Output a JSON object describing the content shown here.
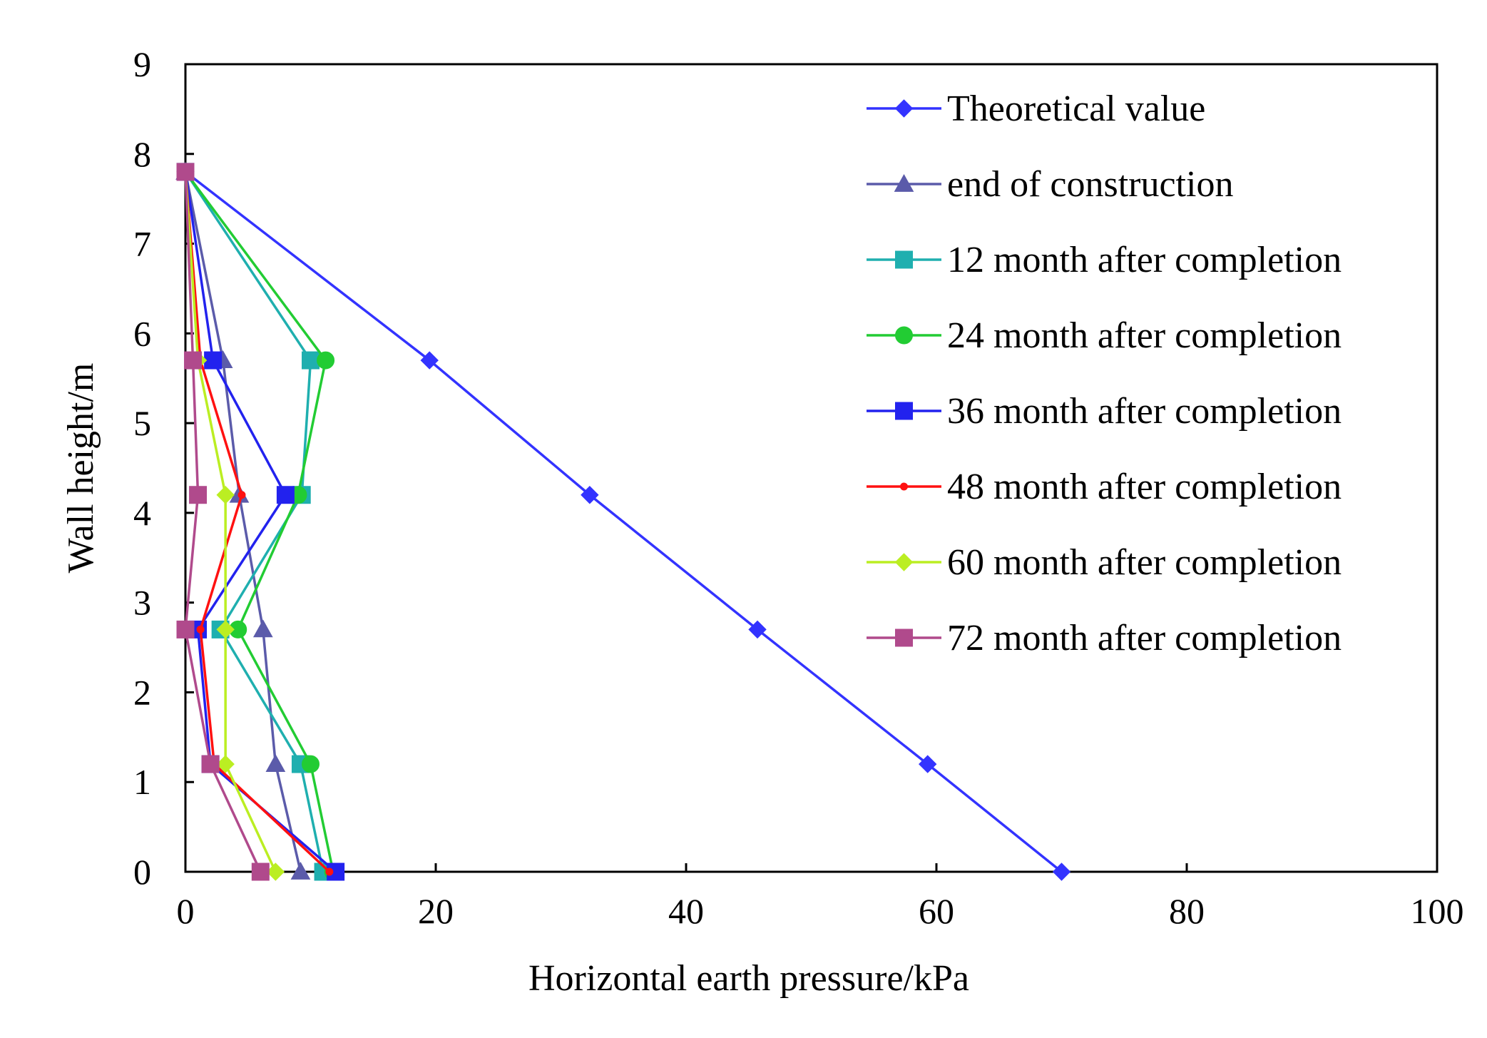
{
  "chart_data": {
    "type": "line",
    "title": "",
    "xlabel": "Horizontal  earth pressure/kPa",
    "ylabel": "Wall height/m",
    "xlim": [
      0,
      100
    ],
    "ylim": [
      0,
      9
    ],
    "xticks": [
      0,
      20,
      40,
      60,
      80,
      100
    ],
    "yticks": [
      0,
      1,
      2,
      3,
      4,
      5,
      6,
      7,
      8,
      9
    ],
    "grid": false,
    "legend_position": "top-right",
    "series": [
      {
        "name": "Theoretical value",
        "color": "#3333ff",
        "marker": "diamond",
        "points": [
          [
            0,
            7.8
          ],
          [
            19.5,
            5.7
          ],
          [
            32.3,
            4.2
          ],
          [
            45.7,
            2.7
          ],
          [
            59.3,
            1.2
          ],
          [
            70.0,
            0.0
          ]
        ]
      },
      {
        "name": "end of construction",
        "color": "#5b5baa",
        "marker": "triangle",
        "points": [
          [
            0,
            7.8
          ],
          [
            3.0,
            5.7
          ],
          [
            4.3,
            4.2
          ],
          [
            6.2,
            2.7
          ],
          [
            7.2,
            1.2
          ],
          [
            9.2,
            0.0
          ]
        ]
      },
      {
        "name": "12 month after completion",
        "color": "#1fafaf",
        "marker": "square",
        "points": [
          [
            0,
            7.8
          ],
          [
            10.0,
            5.7
          ],
          [
            9.3,
            4.2
          ],
          [
            2.8,
            2.7
          ],
          [
            9.2,
            1.2
          ],
          [
            11.0,
            0.0
          ]
        ]
      },
      {
        "name": "24 month after completion",
        "color": "#22cc33",
        "marker": "circle",
        "points": [
          [
            0,
            7.8
          ],
          [
            11.2,
            5.7
          ],
          [
            9.0,
            4.2
          ],
          [
            4.2,
            2.7
          ],
          [
            10.0,
            1.2
          ],
          [
            11.8,
            0.0
          ]
        ]
      },
      {
        "name": "36 month after completion",
        "color": "#2222ee",
        "marker": "square",
        "points": [
          [
            0,
            7.8
          ],
          [
            2.2,
            5.7
          ],
          [
            8.0,
            4.2
          ],
          [
            1.0,
            2.7
          ],
          [
            2.0,
            1.2
          ],
          [
            12.0,
            0.0
          ]
        ]
      },
      {
        "name": "48 month after completion",
        "color": "#ff1111",
        "marker": "dot",
        "points": [
          [
            0,
            7.8
          ],
          [
            1.2,
            5.7
          ],
          [
            4.5,
            4.2
          ],
          [
            1.2,
            2.7
          ],
          [
            2.3,
            1.2
          ],
          [
            11.5,
            0.0
          ]
        ]
      },
      {
        "name": "60 month after completion",
        "color": "#bbee22",
        "marker": "diamond",
        "points": [
          [
            0,
            7.8
          ],
          [
            1.0,
            5.7
          ],
          [
            3.2,
            4.2
          ],
          [
            3.2,
            2.7
          ],
          [
            3.2,
            1.2
          ],
          [
            7.2,
            0.0
          ]
        ]
      },
      {
        "name": "72 month after completion",
        "color": "#b04a8c",
        "marker": "square",
        "points": [
          [
            0,
            7.8
          ],
          [
            0.6,
            5.7
          ],
          [
            1.0,
            4.2
          ],
          [
            0.0,
            2.7
          ],
          [
            2.0,
            1.2
          ],
          [
            6.0,
            0.0
          ]
        ]
      }
    ]
  }
}
